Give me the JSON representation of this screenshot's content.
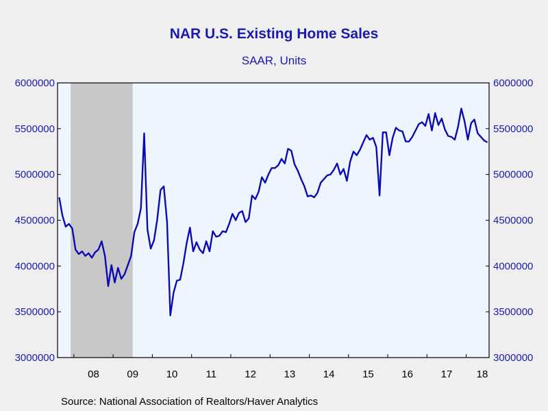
{
  "chart_data": {
    "type": "line",
    "title": "NAR U.S. Existing Home Sales",
    "subtitle": "SAAR, Units",
    "source": "Source:  National Association of Realtors/Haver Analytics",
    "ylim": [
      3000000,
      6000000
    ],
    "y_ticks": [
      "3000000",
      "3500000",
      "4000000",
      "4500000",
      "5000000",
      "5500000",
      "6000000"
    ],
    "x_ticks": [
      "08",
      "09",
      "10",
      "11",
      "12",
      "13",
      "14",
      "15",
      "16",
      "17",
      "18"
    ],
    "x_range": [
      "2007-08",
      "2018-07"
    ],
    "recession_shading": {
      "start": "2007-12",
      "end": "2009-06"
    },
    "grid": false,
    "series": [
      {
        "color": "#0b0bb4",
        "x": [
          "2007-08",
          "2007-09",
          "2007-10",
          "2007-11",
          "2007-12",
          "2008-01",
          "2008-02",
          "2008-03",
          "2008-04",
          "2008-05",
          "2008-06",
          "2008-07",
          "2008-08",
          "2008-09",
          "2008-10",
          "2008-11",
          "2008-12",
          "2009-01",
          "2009-02",
          "2009-03",
          "2009-04",
          "2009-05",
          "2009-06",
          "2009-07",
          "2009-08",
          "2009-09",
          "2009-10",
          "2009-11",
          "2009-12",
          "2010-01",
          "2010-02",
          "2010-03",
          "2010-04",
          "2010-05",
          "2010-06",
          "2010-07",
          "2010-08",
          "2010-09",
          "2010-10",
          "2010-11",
          "2010-12",
          "2011-01",
          "2011-02",
          "2011-03",
          "2011-04",
          "2011-05",
          "2011-06",
          "2011-07",
          "2011-08",
          "2011-09",
          "2011-10",
          "2011-11",
          "2011-12",
          "2012-01",
          "2012-02",
          "2012-03",
          "2012-04",
          "2012-05",
          "2012-06",
          "2012-07",
          "2012-08",
          "2012-09",
          "2012-10",
          "2012-11",
          "2012-12",
          "2013-01",
          "2013-02",
          "2013-03",
          "2013-04",
          "2013-05",
          "2013-06",
          "2013-07",
          "2013-08",
          "2013-09",
          "2013-10",
          "2013-11",
          "2013-12",
          "2014-01",
          "2014-02",
          "2014-03",
          "2014-04",
          "2014-05",
          "2014-06",
          "2014-07",
          "2014-08",
          "2014-09",
          "2014-10",
          "2014-11",
          "2014-12",
          "2015-01",
          "2015-02",
          "2015-03",
          "2015-04",
          "2015-05",
          "2015-06",
          "2015-07",
          "2015-08",
          "2015-09",
          "2015-10",
          "2015-11",
          "2015-12",
          "2016-01",
          "2016-02",
          "2016-03",
          "2016-04",
          "2016-05",
          "2016-06",
          "2016-07",
          "2016-08",
          "2016-09",
          "2016-10",
          "2016-11",
          "2016-12",
          "2017-01",
          "2017-02",
          "2017-03",
          "2017-04",
          "2017-05",
          "2017-06",
          "2017-07",
          "2017-08",
          "2017-09",
          "2017-10",
          "2017-11",
          "2017-12",
          "2018-01",
          "2018-02",
          "2018-03",
          "2018-04",
          "2018-05",
          "2018-06",
          "2018-07"
        ],
        "values": [
          4750000,
          4550000,
          4430000,
          4460000,
          4410000,
          4180000,
          4130000,
          4160000,
          4110000,
          4140000,
          4090000,
          4150000,
          4180000,
          4270000,
          4110000,
          3780000,
          4010000,
          3820000,
          3980000,
          3860000,
          3910000,
          4010000,
          4110000,
          4370000,
          4460000,
          4630000,
          5450000,
          4400000,
          4190000,
          4280000,
          4510000,
          4830000,
          4870000,
          4480000,
          3460000,
          3710000,
          3840000,
          3850000,
          4030000,
          4250000,
          4420000,
          4160000,
          4260000,
          4180000,
          4140000,
          4270000,
          4160000,
          4380000,
          4320000,
          4330000,
          4380000,
          4370000,
          4460000,
          4570000,
          4500000,
          4580000,
          4600000,
          4480000,
          4520000,
          4770000,
          4730000,
          4810000,
          4970000,
          4910000,
          5000000,
          5070000,
          5070000,
          5100000,
          5170000,
          5120000,
          5280000,
          5260000,
          5110000,
          5040000,
          4950000,
          4870000,
          4760000,
          4770000,
          4750000,
          4800000,
          4910000,
          4950000,
          4990000,
          5000000,
          5050000,
          5120000,
          5000000,
          5060000,
          4930000,
          5140000,
          5250000,
          5210000,
          5270000,
          5350000,
          5430000,
          5380000,
          5400000,
          5300000,
          4770000,
          5460000,
          5460000,
          5210000,
          5400000,
          5510000,
          5480000,
          5470000,
          5360000,
          5360000,
          5410000,
          5480000,
          5550000,
          5570000,
          5530000,
          5660000,
          5480000,
          5670000,
          5540000,
          5610000,
          5490000,
          5420000,
          5410000,
          5380000,
          5520000,
          5720000,
          5580000,
          5380000,
          5560000,
          5600000,
          5450000,
          5410000,
          5370000,
          5350000
        ]
      }
    ]
  }
}
